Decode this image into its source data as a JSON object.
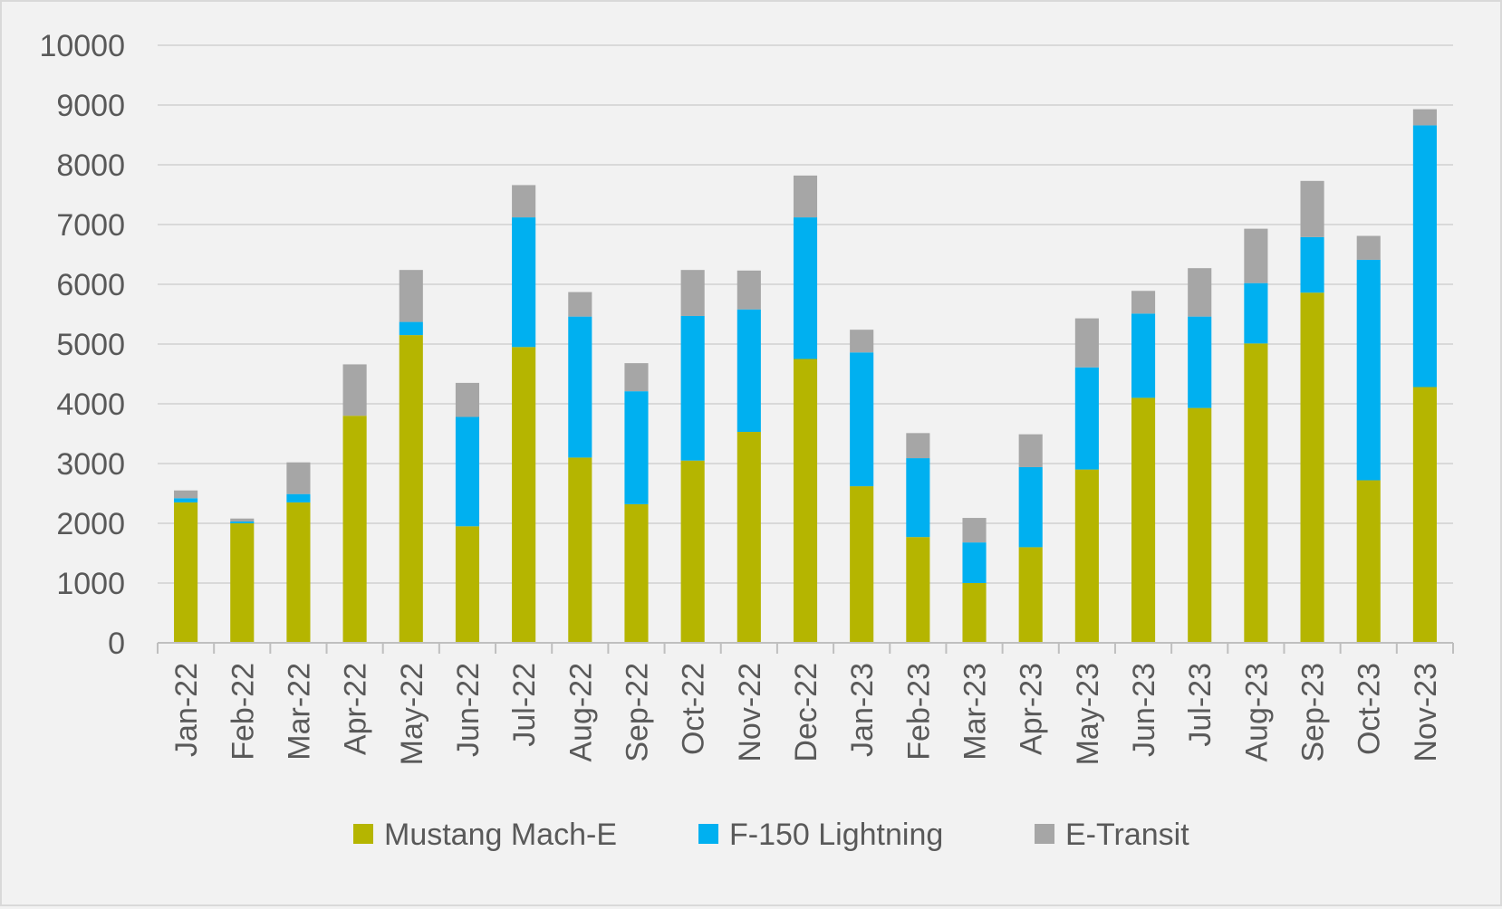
{
  "chart_data": {
    "type": "bar",
    "stacked": true,
    "title": "",
    "xlabel": "",
    "ylabel": "",
    "ylim": [
      0,
      10000
    ],
    "yticks": [
      0,
      1000,
      2000,
      3000,
      4000,
      5000,
      6000,
      7000,
      8000,
      9000,
      10000
    ],
    "grid": true,
    "legend_position": "bottom",
    "categories": [
      "Jan-22",
      "Feb-22",
      "Mar-22",
      "Apr-22",
      "May-22",
      "Jun-22",
      "Jul-22",
      "Aug-22",
      "Sep-22",
      "Oct-22",
      "Nov-22",
      "Dec-22",
      "Jan-23",
      "Feb-23",
      "Mar-23",
      "Apr-23",
      "May-23",
      "Jun-23",
      "Jul-23",
      "Aug-23",
      "Sep-23",
      "Oct-23",
      "Nov-23"
    ],
    "series": [
      {
        "name": "Mustang Mach-E",
        "color": "#b5b500",
        "values": [
          2350,
          2000,
          2350,
          3800,
          5150,
          1950,
          4950,
          3100,
          2320,
          3050,
          3530,
          4750,
          2620,
          1770,
          1000,
          1600,
          2900,
          4100,
          3930,
          5010,
          5860,
          2720,
          4280
        ]
      },
      {
        "name": "F-150 Lightning",
        "color": "#00b0f0",
        "values": [
          70,
          30,
          140,
          0,
          220,
          1830,
          2170,
          2360,
          1890,
          2420,
          2050,
          2370,
          2240,
          1320,
          680,
          1340,
          1710,
          1410,
          1530,
          1010,
          930,
          3690,
          4380
        ]
      },
      {
        "name": "E-Transit",
        "color": "#a6a6a6",
        "values": [
          130,
          50,
          530,
          860,
          870,
          570,
          540,
          410,
          470,
          770,
          650,
          700,
          380,
          420,
          410,
          550,
          820,
          380,
          810,
          910,
          940,
          400,
          270
        ]
      }
    ]
  }
}
